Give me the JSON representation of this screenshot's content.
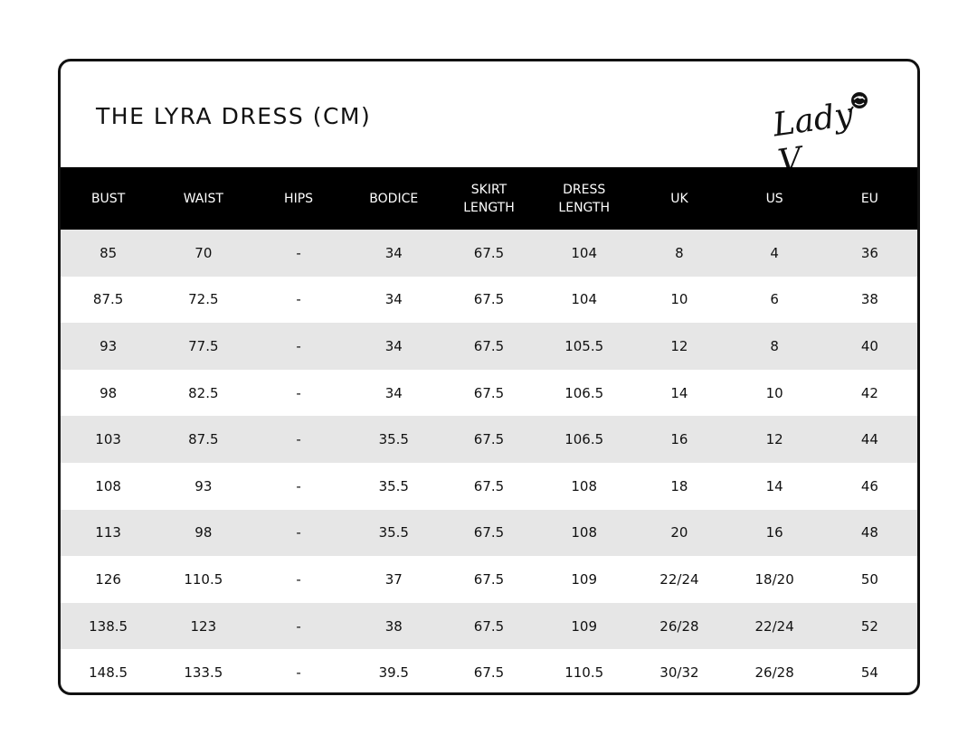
{
  "title": "THE LYRA DRESS (CM)",
  "logo_text": "Lady V",
  "colors": {
    "header_bg": "#000000",
    "stripe": "#e6e6e6"
  },
  "columns": [
    [
      "BUST"
    ],
    [
      "WAIST"
    ],
    [
      "HIPS"
    ],
    [
      "BODICE"
    ],
    [
      "SKIRT",
      "LENGTH"
    ],
    [
      "DRESS",
      "LENGTH"
    ],
    [
      "UK"
    ],
    [
      "US"
    ],
    [
      "EU"
    ]
  ],
  "rows": [
    [
      "85",
      "70",
      "-",
      "34",
      "67.5",
      "104",
      "8",
      "4",
      "36"
    ],
    [
      "87.5",
      "72.5",
      "-",
      "34",
      "67.5",
      "104",
      "10",
      "6",
      "38"
    ],
    [
      "93",
      "77.5",
      "-",
      "34",
      "67.5",
      "105.5",
      "12",
      "8",
      "40"
    ],
    [
      "98",
      "82.5",
      "-",
      "34",
      "67.5",
      "106.5",
      "14",
      "10",
      "42"
    ],
    [
      "103",
      "87.5",
      "-",
      "35.5",
      "67.5",
      "106.5",
      "16",
      "12",
      "44"
    ],
    [
      "108",
      "93",
      "-",
      "35.5",
      "67.5",
      "108",
      "18",
      "14",
      "46"
    ],
    [
      "113",
      "98",
      "-",
      "35.5",
      "67.5",
      "108",
      "20",
      "16",
      "48"
    ],
    [
      "126",
      "110.5",
      "-",
      "37",
      "67.5",
      "109",
      "22/24",
      "18/20",
      "50"
    ],
    [
      "138.5",
      "123",
      "-",
      "38",
      "67.5",
      "109",
      "26/28",
      "22/24",
      "52"
    ],
    [
      "148.5",
      "133.5",
      "-",
      "39.5",
      "67.5",
      "110.5",
      "30/32",
      "26/28",
      "54"
    ]
  ]
}
